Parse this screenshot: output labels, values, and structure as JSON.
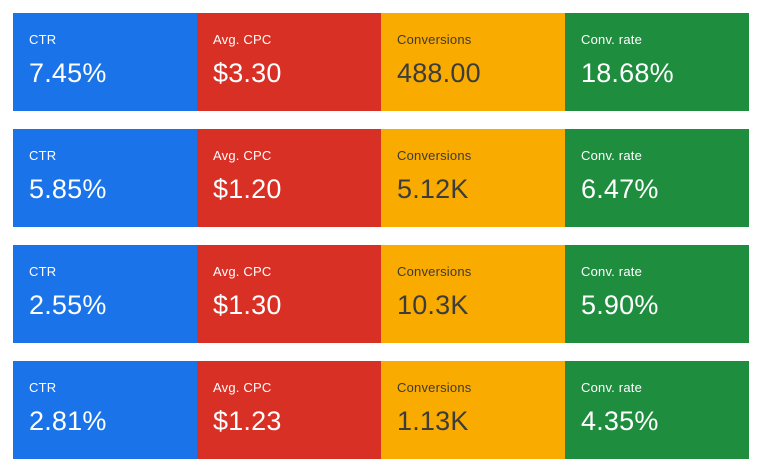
{
  "colors": {
    "ctr": "#1a73e8",
    "cpc": "#d93025",
    "conversions": "#f9ab00",
    "conv_rate": "#1e8e3e"
  },
  "rows": [
    {
      "ctr": {
        "label": "CTR",
        "value": "7.45%"
      },
      "cpc": {
        "label": "Avg. CPC",
        "value": "$3.30"
      },
      "conversions": {
        "label": "Conversions",
        "value": "488.00"
      },
      "conv_rate": {
        "label": "Conv. rate",
        "value": "18.68%"
      }
    },
    {
      "ctr": {
        "label": "CTR",
        "value": "5.85%"
      },
      "cpc": {
        "label": "Avg. CPC",
        "value": "$1.20"
      },
      "conversions": {
        "label": "Conversions",
        "value": "5.12K"
      },
      "conv_rate": {
        "label": "Conv. rate",
        "value": "6.47%"
      }
    },
    {
      "ctr": {
        "label": "CTR",
        "value": "2.55%"
      },
      "cpc": {
        "label": "Avg. CPC",
        "value": "$1.30"
      },
      "conversions": {
        "label": "Conversions",
        "value": "10.3K"
      },
      "conv_rate": {
        "label": "Conv. rate",
        "value": "5.90%"
      }
    },
    {
      "ctr": {
        "label": "CTR",
        "value": "2.81%"
      },
      "cpc": {
        "label": "Avg. CPC",
        "value": "$1.23"
      },
      "conversions": {
        "label": "Conversions",
        "value": "1.13K"
      },
      "conv_rate": {
        "label": "Conv. rate",
        "value": "4.35%"
      }
    }
  ]
}
